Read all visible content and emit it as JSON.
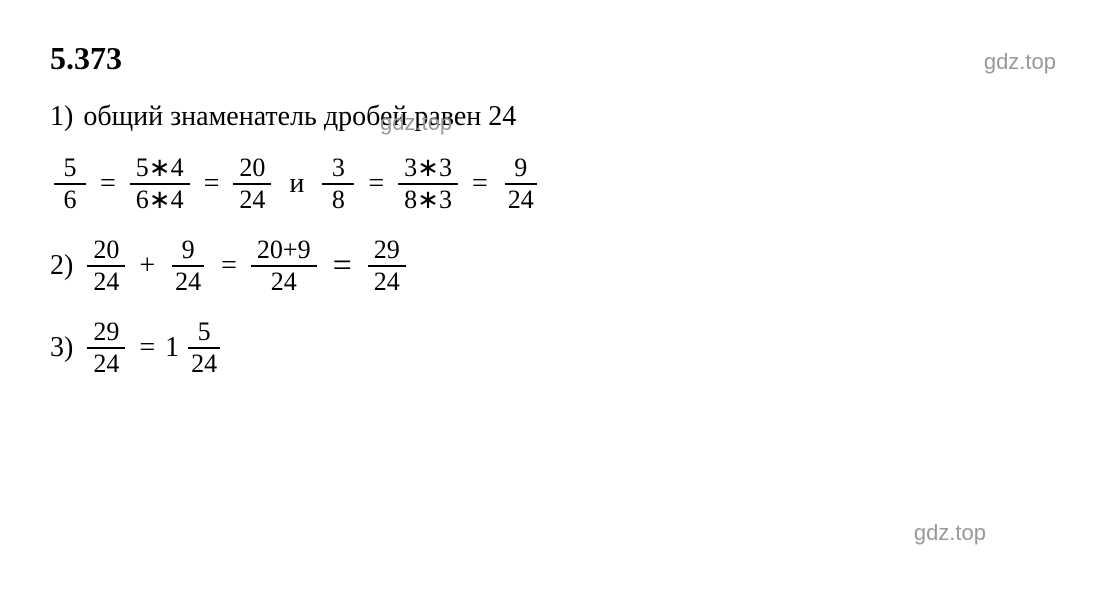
{
  "header": {
    "problem_number": "5.373",
    "watermark": "gdz.top"
  },
  "watermark_mid": "gdz.top",
  "watermark_bottom": "gdz.top",
  "line1": {
    "item_num": "1)",
    "text": "общий знаменатель дробей равен 24"
  },
  "line2": {
    "f1": {
      "num": "5",
      "den": "6"
    },
    "eq1": "=",
    "f2": {
      "num": "5∗4",
      "den": "6∗4"
    },
    "eq2": "=",
    "f3": {
      "num": "20",
      "den": "24"
    },
    "and": "и",
    "f4": {
      "num": "3",
      "den": "8"
    },
    "eq3": "=",
    "f5": {
      "num": "3∗3",
      "den": "8∗3"
    },
    "eq4": "=",
    "f6": {
      "num": "9",
      "den": "24"
    }
  },
  "line3": {
    "item_num": "2)",
    "f1": {
      "num": "20",
      "den": "24"
    },
    "plus": "+",
    "f2": {
      "num": "9",
      "den": "24"
    },
    "eq1": "=",
    "f3": {
      "num": "20+9",
      "den": "24"
    },
    "eq2": "=",
    "f4": {
      "num": "29",
      "den": "24"
    }
  },
  "line4": {
    "item_num": "3)",
    "f1": {
      "num": "29",
      "den": "24"
    },
    "eq1": "=",
    "mixed": {
      "whole": "1",
      "num": "5",
      "den": "24"
    }
  }
}
